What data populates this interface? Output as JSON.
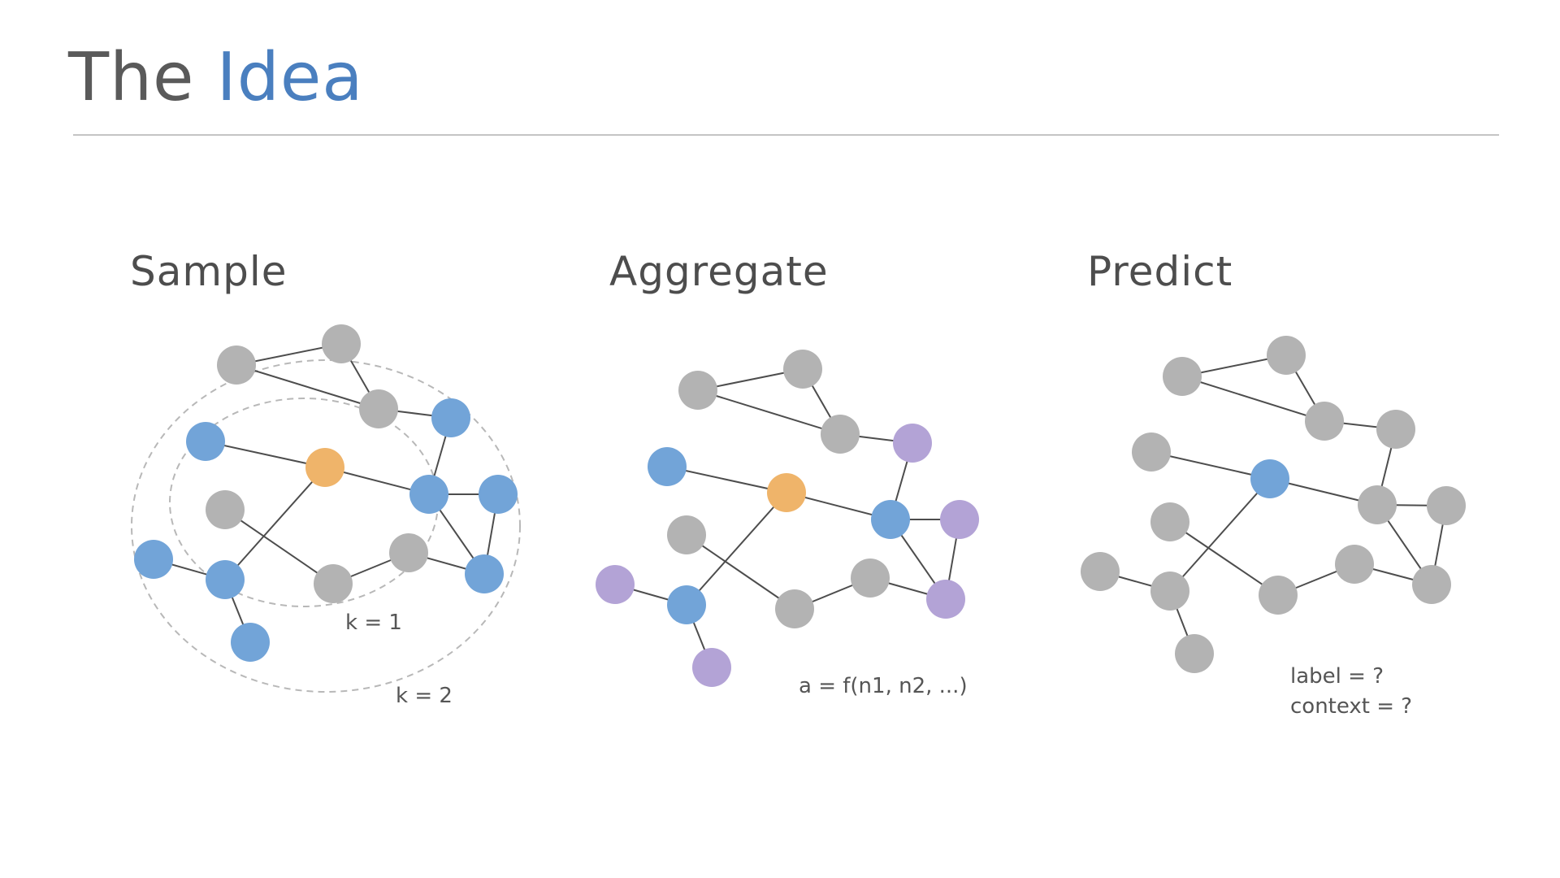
{
  "title": {
    "prefix": "The",
    "accent": "Idea"
  },
  "panels": [
    {
      "heading": "Sample",
      "annotations": [
        "k = 1",
        "k = 2"
      ]
    },
    {
      "heading": "Aggregate",
      "annotations": [
        "a = f(n1, n2, ...)"
      ]
    },
    {
      "heading": "Predict",
      "annotations": [
        "label = ?",
        "context = ?"
      ]
    }
  ],
  "colors": {
    "neutral_node": "#b3b3b3",
    "neighbor_node": "#72a4d8",
    "target_node": "#efb46a",
    "aggregated_node": "#b3a3d6",
    "edge": "#4d4d4d",
    "hop_ring": "#b8b8b8",
    "accent_text": "#4a7fbf"
  }
}
